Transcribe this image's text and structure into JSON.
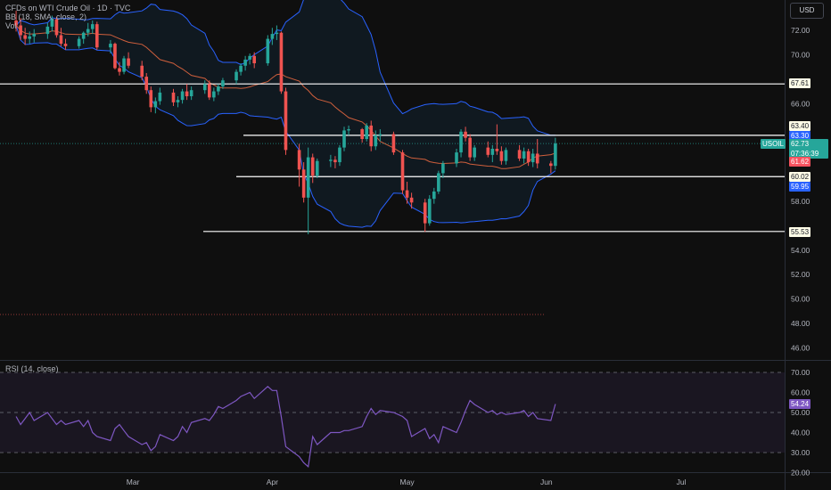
{
  "legend": {
    "main": "CFDs on WTI Crude Oil · 1D · TVC",
    "bb": "BB (18, SMA, close, 2)",
    "vol": "Vol"
  },
  "rsi_legend": "RSI (14, close)",
  "currency_button": "USD",
  "symbol_label": "USOIL",
  "countdown": "07:36:39",
  "price_labels": {
    "level_67": "67.61",
    "level_63_4": "63.40",
    "bb_upper": "63.30",
    "last": "62.73",
    "bb_mid": "61.62",
    "level_60": "60.02",
    "bb_lower": "59.95",
    "level_55": "55.53",
    "rsi": "54.24"
  },
  "colors": {
    "background": "#0f0f0f",
    "up": "#26a69a",
    "down": "#ef5350",
    "bb_band": "#2962ff",
    "bb_mid": "#f7525f",
    "level_line": "#ffffff",
    "rsi_line": "#7e57c2"
  },
  "chart_data": [
    {
      "type": "candlestick",
      "title": "CFDs on WTI Crude Oil · 1D · TVC",
      "y_ticks": [
        "72.00",
        "70.00",
        "68.00",
        "66.00",
        "64.00",
        "62.00",
        "60.00",
        "58.00",
        "56.00",
        "54.00",
        "52.00",
        "50.00",
        "48.00",
        "46.00"
      ],
      "x_ticks": [
        "Mar",
        "Apr",
        "May",
        "Jun",
        "Jul"
      ],
      "ylim": [
        45,
        73.5
      ],
      "horizontal_levels": [
        67.61,
        63.4,
        60.02,
        55.53
      ],
      "last_price": 62.73,
      "bollinger_bands": {
        "period": 18,
        "stdev": 2,
        "upper": 63.3,
        "middle": 61.62,
        "lower": 59.95
      },
      "x_range": [
        "2025-02-01",
        "2025-07-16"
      ],
      "candles": [
        [
          "2025-02-03",
          72.8,
          73.6,
          71.9,
          72.4
        ],
        [
          "2025-02-04",
          72.4,
          73.0,
          71.2,
          71.6
        ],
        [
          "2025-02-05",
          71.6,
          72.2,
          70.8,
          71.3
        ],
        [
          "2025-02-06",
          71.3,
          71.9,
          70.9,
          71.5
        ],
        [
          "2025-02-07",
          71.5,
          72.1,
          71.0,
          71.7
        ],
        [
          "2025-02-10",
          71.7,
          72.6,
          71.3,
          72.3
        ],
        [
          "2025-02-11",
          72.3,
          73.2,
          71.9,
          72.9
        ],
        [
          "2025-02-12",
          72.9,
          73.1,
          71.4,
          71.6
        ],
        [
          "2025-02-13",
          71.6,
          72.2,
          70.7,
          70.9
        ],
        [
          "2025-02-14",
          70.9,
          71.3,
          70.4,
          70.7
        ],
        [
          "2025-02-17",
          70.7,
          71.5,
          70.5,
          71.3
        ],
        [
          "2025-02-18",
          71.3,
          71.9,
          70.9,
          71.8
        ],
        [
          "2025-02-19",
          71.8,
          72.6,
          71.5,
          72.1
        ],
        [
          "2025-02-20",
          72.1,
          72.8,
          71.7,
          72.5
        ],
        [
          "2025-02-21",
          72.5,
          72.7,
          70.4,
          70.6
        ],
        [
          "2025-02-24",
          70.6,
          71.2,
          70.1,
          70.9
        ],
        [
          "2025-02-25",
          70.9,
          71.0,
          68.8,
          68.9
        ],
        [
          "2025-02-26",
          68.9,
          69.4,
          68.3,
          68.6
        ],
        [
          "2025-02-27",
          68.6,
          69.9,
          68.4,
          69.7
        ],
        [
          "2025-02-28",
          69.7,
          70.2,
          68.9,
          69.1
        ],
        [
          "2025-03-03",
          69.1,
          69.5,
          67.9,
          68.2
        ],
        [
          "2025-03-04",
          68.2,
          68.5,
          66.8,
          67.1
        ],
        [
          "2025-03-05",
          67.1,
          67.4,
          65.3,
          65.7
        ],
        [
          "2025-03-06",
          65.7,
          66.5,
          65.2,
          66.2
        ],
        [
          "2025-03-07",
          66.2,
          67.3,
          65.9,
          66.9
        ],
        [
          "2025-03-10",
          66.9,
          67.2,
          65.8,
          66.1
        ],
        [
          "2025-03-11",
          66.1,
          66.6,
          65.7,
          66.3
        ],
        [
          "2025-03-12",
          66.3,
          67.2,
          66.0,
          67.0
        ],
        [
          "2025-03-13",
          67.0,
          67.6,
          66.3,
          66.6
        ],
        [
          "2025-03-14",
          66.6,
          67.4,
          66.3,
          67.1
        ],
        [
          "2025-03-17",
          67.1,
          67.9,
          66.8,
          67.6
        ],
        [
          "2025-03-18",
          67.6,
          67.9,
          66.3,
          66.5
        ],
        [
          "2025-03-19",
          66.5,
          67.3,
          66.2,
          67.0
        ],
        [
          "2025-03-20",
          67.0,
          67.6,
          66.7,
          67.4
        ],
        [
          "2025-03-21",
          67.4,
          68.1,
          67.2,
          67.9
        ],
        [
          "2025-03-24",
          67.9,
          68.8,
          67.6,
          68.6
        ],
        [
          "2025-03-25",
          68.6,
          69.3,
          68.3,
          69.1
        ],
        [
          "2025-03-26",
          69.1,
          69.9,
          68.7,
          69.6
        ],
        [
          "2025-03-27",
          69.6,
          70.1,
          69.2,
          69.9
        ],
        [
          "2025-03-28",
          69.9,
          70.2,
          68.9,
          69.3
        ],
        [
          "2025-03-31",
          69.3,
          71.6,
          69.1,
          71.3
        ],
        [
          "2025-04-01",
          71.3,
          72.2,
          70.8,
          71.7
        ],
        [
          "2025-04-02",
          71.7,
          72.4,
          71.2,
          71.8
        ],
        [
          "2025-04-03",
          71.8,
          71.9,
          66.8,
          67.0
        ],
        [
          "2025-04-04",
          67.0,
          67.3,
          61.8,
          62.2
        ],
        [
          "2025-04-07",
          62.2,
          62.7,
          59.2,
          60.6
        ],
        [
          "2025-04-08",
          60.6,
          61.2,
          57.9,
          58.3
        ],
        [
          "2025-04-09",
          58.3,
          62.4,
          55.3,
          61.6
        ],
        [
          "2025-04-10",
          61.6,
          61.9,
          59.5,
          60.1
        ],
        [
          "2025-04-11",
          60.1,
          61.5,
          59.9,
          61.3
        ],
        [
          "2025-04-14",
          61.3,
          61.8,
          60.8,
          61.4
        ],
        [
          "2025-04-15",
          61.4,
          61.7,
          60.7,
          61.2
        ],
        [
          "2025-04-16",
          61.2,
          62.6,
          60.9,
          62.4
        ],
        [
          "2025-04-17",
          62.4,
          64.1,
          62.1,
          63.8
        ],
        [
          "2025-04-18",
          63.8,
          64.2,
          63.4,
          63.9
        ],
        [
          "2025-04-21",
          63.9,
          64.0,
          62.8,
          63.1
        ],
        [
          "2025-04-22",
          63.1,
          64.4,
          62.9,
          64.2
        ],
        [
          "2025-04-23",
          64.2,
          64.6,
          62.1,
          62.5
        ],
        [
          "2025-04-24",
          62.5,
          63.8,
          62.2,
          63.4
        ],
        [
          "2025-04-25",
          63.4,
          63.9,
          62.9,
          63.5
        ],
        [
          "2025-04-28",
          63.5,
          63.7,
          61.8,
          62.0
        ],
        [
          "2025-04-30",
          62.0,
          62.2,
          58.6,
          58.9
        ],
        [
          "2025-05-01",
          58.9,
          59.6,
          57.8,
          58.3
        ],
        [
          "2025-05-02",
          58.3,
          58.7,
          57.4,
          57.9
        ],
        [
          "2025-05-05",
          57.9,
          58.2,
          55.5,
          56.2
        ],
        [
          "2025-05-06",
          56.2,
          58.5,
          56.0,
          58.2
        ],
        [
          "2025-05-07",
          58.2,
          59.1,
          57.8,
          58.8
        ],
        [
          "2025-05-08",
          58.8,
          60.5,
          58.6,
          60.3
        ],
        [
          "2025-05-09",
          60.3,
          61.3,
          59.9,
          61.1
        ],
        [
          "2025-05-12",
          61.1,
          62.3,
          60.8,
          62.0
        ],
        [
          "2025-05-13",
          62.0,
          63.9,
          61.6,
          63.7
        ],
        [
          "2025-05-14",
          63.7,
          64.1,
          62.9,
          63.2
        ],
        [
          "2025-05-15",
          63.2,
          63.5,
          61.3,
          61.6
        ],
        [
          "2025-05-16",
          61.6,
          62.6,
          61.3,
          62.4
        ],
        [
          "2025-05-19",
          62.4,
          62.9,
          61.6,
          61.8
        ],
        [
          "2025-05-20",
          61.8,
          62.6,
          61.2,
          62.3
        ],
        [
          "2025-05-21",
          62.3,
          64.3,
          61.8,
          62.1
        ],
        [
          "2025-05-22",
          62.1,
          62.5,
          61.0,
          61.3
        ],
        [
          "2025-05-23",
          61.3,
          62.4,
          61.0,
          62.2
        ],
        [
          "2025-05-26",
          62.2,
          62.6,
          61.3,
          61.5
        ],
        [
          "2025-05-27",
          61.5,
          62.4,
          61.1,
          62.1
        ],
        [
          "2025-05-28",
          62.1,
          62.3,
          60.9,
          61.2
        ],
        [
          "2025-05-29",
          61.2,
          62.3,
          60.8,
          61.9
        ],
        [
          "2025-05-30",
          61.9,
          63.1,
          60.7,
          61.1
        ],
        [
          "2025-06-02",
          61.1,
          61.3,
          60.3,
          60.9
        ],
        [
          "2025-06-03",
          60.9,
          63.2,
          60.6,
          62.73
        ]
      ]
    },
    {
      "type": "line",
      "title": "RSI (14, close)",
      "y_ticks": [
        "70.00",
        "60.00",
        "50.00",
        "40.00",
        "30.00",
        "20.00"
      ],
      "ylim": [
        17,
        72
      ],
      "reference_levels": [
        70,
        50,
        30
      ],
      "last_value": 54.24,
      "series": [
        {
          "name": "RSI (14, close)",
          "values": [
            [
              "2025-02-03",
              48
            ],
            [
              "2025-02-04",
              44
            ],
            [
              "2025-02-05",
              47
            ],
            [
              "2025-02-06",
              50
            ],
            [
              "2025-02-07",
              46
            ],
            [
              "2025-02-10",
              50
            ],
            [
              "2025-02-11",
              47
            ],
            [
              "2025-02-12",
              44
            ],
            [
              "2025-02-13",
              46
            ],
            [
              "2025-02-14",
              44
            ],
            [
              "2025-02-17",
              46
            ],
            [
              "2025-02-18",
              43
            ],
            [
              "2025-02-19",
              46
            ],
            [
              "2025-02-20",
              40
            ],
            [
              "2025-02-21",
              38
            ],
            [
              "2025-02-24",
              36
            ],
            [
              "2025-02-25",
              42
            ],
            [
              "2025-02-26",
              44
            ],
            [
              "2025-02-27",
              41
            ],
            [
              "2025-02-28",
              38
            ],
            [
              "2025-03-03",
              34
            ],
            [
              "2025-03-04",
              35
            ],
            [
              "2025-03-05",
              31
            ],
            [
              "2025-03-06",
              33
            ],
            [
              "2025-03-07",
              39
            ],
            [
              "2025-03-10",
              36
            ],
            [
              "2025-03-11",
              38
            ],
            [
              "2025-03-12",
              43
            ],
            [
              "2025-03-13",
              40
            ],
            [
              "2025-03-14",
              45
            ],
            [
              "2025-03-17",
              47
            ],
            [
              "2025-03-18",
              46
            ],
            [
              "2025-03-19",
              49
            ],
            [
              "2025-03-20",
              53
            ],
            [
              "2025-03-21",
              52
            ],
            [
              "2025-03-24",
              56
            ],
            [
              "2025-03-25",
              58
            ],
            [
              "2025-03-26",
              59
            ],
            [
              "2025-03-27",
              60
            ],
            [
              "2025-03-28",
              57
            ],
            [
              "2025-03-31",
              63
            ],
            [
              "2025-04-01",
              61
            ],
            [
              "2025-04-02",
              61
            ],
            [
              "2025-04-03",
              48
            ],
            [
              "2025-04-04",
              33
            ],
            [
              "2025-04-07",
              28
            ],
            [
              "2025-04-08",
              25
            ],
            [
              "2025-04-09",
              23
            ],
            [
              "2025-04-10",
              38
            ],
            [
              "2025-04-11",
              34
            ],
            [
              "2025-04-14",
              40
            ],
            [
              "2025-04-15",
              40
            ],
            [
              "2025-04-16",
              40
            ],
            [
              "2025-04-17",
              41
            ],
            [
              "2025-04-18",
              41
            ],
            [
              "2025-04-21",
              43
            ],
            [
              "2025-04-22",
              48
            ],
            [
              "2025-04-23",
              52
            ],
            [
              "2025-04-24",
              49
            ],
            [
              "2025-04-25",
              51
            ],
            [
              "2025-04-28",
              50
            ],
            [
              "2025-04-30",
              48
            ],
            [
              "2025-05-01",
              46
            ],
            [
              "2025-05-02",
              38
            ],
            [
              "2025-05-05",
              42
            ],
            [
              "2025-05-06",
              37
            ],
            [
              "2025-05-07",
              39
            ],
            [
              "2025-05-08",
              35
            ],
            [
              "2025-05-09",
              43
            ],
            [
              "2025-05-12",
              40
            ],
            [
              "2025-05-13",
              45
            ],
            [
              "2025-05-14",
              51
            ],
            [
              "2025-05-15",
              56
            ],
            [
              "2025-05-16",
              54
            ],
            [
              "2025-05-19",
              50
            ],
            [
              "2025-05-20",
              51
            ],
            [
              "2025-05-21",
              49
            ],
            [
              "2025-05-22",
              50
            ],
            [
              "2025-05-23",
              49
            ],
            [
              "2025-05-26",
              50
            ],
            [
              "2025-05-27",
              51
            ],
            [
              "2025-05-28",
              48
            ],
            [
              "2025-05-29",
              50
            ],
            [
              "2025-05-30",
              47
            ],
            [
              "2025-06-02",
              46
            ],
            [
              "2025-06-03",
              54.24
            ]
          ]
        }
      ]
    }
  ]
}
